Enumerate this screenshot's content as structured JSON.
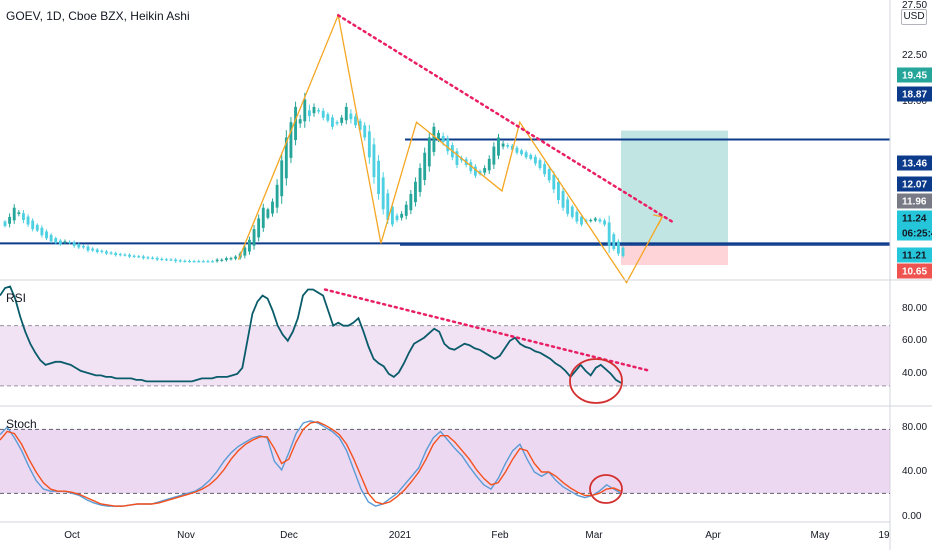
{
  "header": {
    "title": "GOEV, 1D, Cboe BZX, Heikin Ashi",
    "currency": "USD"
  },
  "colors": {
    "up": "#26a69a",
    "down": "#4dd0e1",
    "level_line": "#0d3b8c",
    "trend_dotted": "#e91e63",
    "zigzag": "#f5a623",
    "rsi_line": "#0a5c6b",
    "stoch_k": "#5b9bd5",
    "stoch_d": "#f4511e",
    "band_fill": "#e1bee7",
    "target_zone": "#b2dfdb",
    "stop_zone": "#ffcdd2",
    "circle": "#d32f2f"
  },
  "x_axis": {
    "labels": [
      "Oct",
      "Nov",
      "Dec",
      "2021",
      "Feb",
      "Mar",
      "Apr",
      "May",
      "19"
    ]
  },
  "price_axis": {
    "ticks": [
      "27.50",
      "22.50",
      "18.00"
    ],
    "tags": [
      {
        "label": "19.45",
        "bg": "#26a69a",
        "fg": "#ffffff"
      },
      {
        "label": "18.87",
        "bg": "#0d3b8c",
        "fg": "#ffffff"
      },
      {
        "label": "13.46",
        "bg": "#0d3b8c",
        "fg": "#ffffff"
      },
      {
        "label": "12.07",
        "bg": "#0d3b8c",
        "fg": "#ffffff"
      },
      {
        "label": "11.96",
        "bg": "#787b86",
        "fg": "#ffffff"
      },
      {
        "label": "11.24",
        "bg": "#26c6da",
        "fg": "#131722"
      },
      {
        "label": "06:25:4",
        "bg": "#26c6da",
        "fg": "#131722"
      },
      {
        "label": "11.21",
        "bg": "#26c6da",
        "fg": "#131722"
      },
      {
        "label": "10.65",
        "bg": "#ef5350",
        "fg": "#ffffff"
      }
    ]
  },
  "rsi_pane": {
    "title": "RSI",
    "ticks": [
      "80.00",
      "60.00",
      "40.00"
    ]
  },
  "stoch_pane": {
    "title": "Stoch",
    "ticks": [
      "80.00",
      "40.00",
      "0.00"
    ]
  },
  "chart_data": [
    {
      "type": "candlestick",
      "title": "GOEV, 1D, Cboe BZX, Heikin Ashi",
      "x_range": [
        "2020-09-14",
        "2021-05-22"
      ],
      "ylim": [
        9.8,
        28.0
      ],
      "close": [
        13.2,
        13.8,
        14.4,
        14.1,
        13.6,
        13.3,
        13.0,
        12.9,
        12.6,
        12.4,
        12.2,
        12.1,
        12.0,
        12.2,
        12.1,
        11.9,
        11.8,
        11.8,
        11.6,
        11.6,
        11.5,
        11.5,
        11.4,
        11.4,
        11.3,
        11.3,
        11.3,
        11.2,
        11.2,
        11.2,
        11.1,
        11.1,
        11.1,
        11.0,
        11.0,
        11.0,
        11.0,
        10.9,
        10.9,
        10.9,
        10.9,
        10.9,
        10.9,
        10.9,
        10.9,
        10.9,
        11.0,
        11.0,
        11.1,
        11.1,
        11.2,
        11.4,
        11.8,
        12.3,
        13.0,
        13.7,
        14.4,
        14.3,
        14.8,
        15.9,
        17.5,
        19.0,
        20.0,
        21.0,
        20.2,
        21.5,
        20.4,
        21.0,
        20.7,
        20.3,
        20.1,
        19.7,
        19.9,
        20.3,
        21.0,
        20.2,
        19.8,
        19.5,
        19.0,
        17.7,
        16.4,
        15.3,
        14.3,
        13.6,
        13.3,
        13.6,
        14.0,
        14.6,
        15.3,
        16.1,
        17.0,
        18.0,
        19.0,
        19.7,
        19.3,
        18.7,
        18.1,
        17.7,
        17.2,
        17.5,
        17.2,
        16.8,
        16.5,
        16.6,
        17.0,
        17.6,
        18.4,
        19.0,
        18.6,
        18.4,
        18.2,
        18.0,
        17.9,
        17.7,
        17.6,
        17.3,
        17.0,
        16.6,
        16.2,
        15.6,
        14.9,
        14.4,
        14.0,
        13.8,
        13.5,
        13.3,
        13.5,
        13.6,
        13.7,
        13.5,
        13.3,
        11.9,
        11.7,
        11.4,
        11.24
      ],
      "annotations": {
        "horizontal_levels": [
          18.87,
          12.07,
          11.96
        ],
        "position_entry": 11.96,
        "position_target": 19.45,
        "position_stop": 10.65,
        "last_price": 11.24,
        "countdown": "06:25:4",
        "trend_line": [
          [
            "2020-12-18",
            27.0
          ],
          [
            "2021-03-22",
            13.46
          ]
        ],
        "zigzag_pivots": [
          [
            "2020-11-20",
            11.0
          ],
          [
            "2020-12-18",
            27.0
          ],
          [
            "2020-12-30",
            12.07
          ],
          [
            "2021-01-09",
            20.0
          ],
          [
            "2021-02-02",
            15.5
          ],
          [
            "2021-02-07",
            20.0
          ],
          [
            "2021-02-27",
            13.0
          ],
          [
            "2021-03-09",
            9.5
          ],
          [
            "2021-03-19",
            13.8
          ]
        ]
      }
    },
    {
      "type": "line",
      "title": "RSI",
      "ylim": [
        18,
        99
      ],
      "bands": [
        30,
        70
      ],
      "values": [
        90,
        95,
        96,
        88,
        76,
        66,
        58,
        52,
        47,
        44,
        45,
        46,
        46,
        45,
        44,
        42,
        40,
        39,
        38,
        37,
        37,
        36,
        36,
        35,
        35,
        35,
        35,
        34,
        34,
        33,
        33,
        33,
        33,
        33,
        33,
        33,
        33,
        33,
        33,
        34,
        35,
        35,
        35,
        36,
        36,
        36,
        37,
        38,
        42,
        60,
        78,
        86,
        90,
        88,
        80,
        70,
        64,
        60,
        66,
        75,
        90,
        94,
        94,
        92,
        90,
        80,
        70,
        72,
        70,
        70,
        72,
        75,
        66,
        56,
        48,
        45,
        43,
        38,
        36,
        39,
        45,
        52,
        58,
        60,
        62,
        65,
        68,
        66,
        58,
        55,
        54,
        56,
        58,
        57,
        55,
        54,
        52,
        50,
        48,
        50,
        55,
        60,
        62,
        58,
        56,
        55,
        53,
        52,
        50,
        48,
        45,
        43,
        40,
        36,
        40,
        44,
        40,
        37,
        42,
        44,
        41,
        38,
        34,
        32
      ],
      "annotations": {
        "trend_line": [
          [
            325,
            94
          ],
          [
            650,
            40
          ]
        ]
      }
    },
    {
      "type": "line",
      "title": "Stoch",
      "ylim": [
        -5,
        100
      ],
      "bands": [
        20,
        80
      ],
      "series": [
        {
          "key": "k",
          "values": [
            75,
            82,
            72,
            60,
            45,
            32,
            24,
            22,
            22,
            22,
            20,
            18,
            14,
            11,
            9,
            8,
            8,
            8,
            9,
            10,
            10,
            10,
            12,
            14,
            16,
            18,
            20,
            22,
            26,
            32,
            40,
            50,
            58,
            64,
            68,
            72,
            74,
            72,
            50,
            42,
            58,
            76,
            86,
            88,
            86,
            82,
            78,
            72,
            60,
            42,
            24,
            12,
            8,
            10,
            15,
            20,
            28,
            36,
            44,
            60,
            72,
            78,
            70,
            62,
            55,
            45,
            36,
            28,
            24,
            34,
            48,
            60,
            66,
            52,
            40,
            36,
            40,
            32,
            26,
            22,
            18,
            16,
            18,
            22,
            28,
            24,
            20
          ]
        },
        {
          "key": "d",
          "values": [
            70,
            78,
            76,
            66,
            52,
            40,
            30,
            24,
            22,
            22,
            21,
            19,
            16,
            13,
            10,
            9,
            8,
            8,
            9,
            10,
            10,
            10,
            11,
            13,
            15,
            17,
            19,
            21,
            24,
            28,
            34,
            42,
            52,
            60,
            66,
            70,
            73,
            73,
            62,
            48,
            52,
            68,
            80,
            86,
            87,
            84,
            80,
            75,
            66,
            52,
            36,
            20,
            12,
            10,
            12,
            17,
            23,
            31,
            40,
            52,
            66,
            74,
            74,
            68,
            60,
            52,
            42,
            34,
            28,
            30,
            40,
            52,
            62,
            60,
            48,
            40,
            40,
            36,
            30,
            25,
            21,
            18,
            18,
            20,
            24,
            25,
            22
          ]
        }
      ]
    }
  ]
}
